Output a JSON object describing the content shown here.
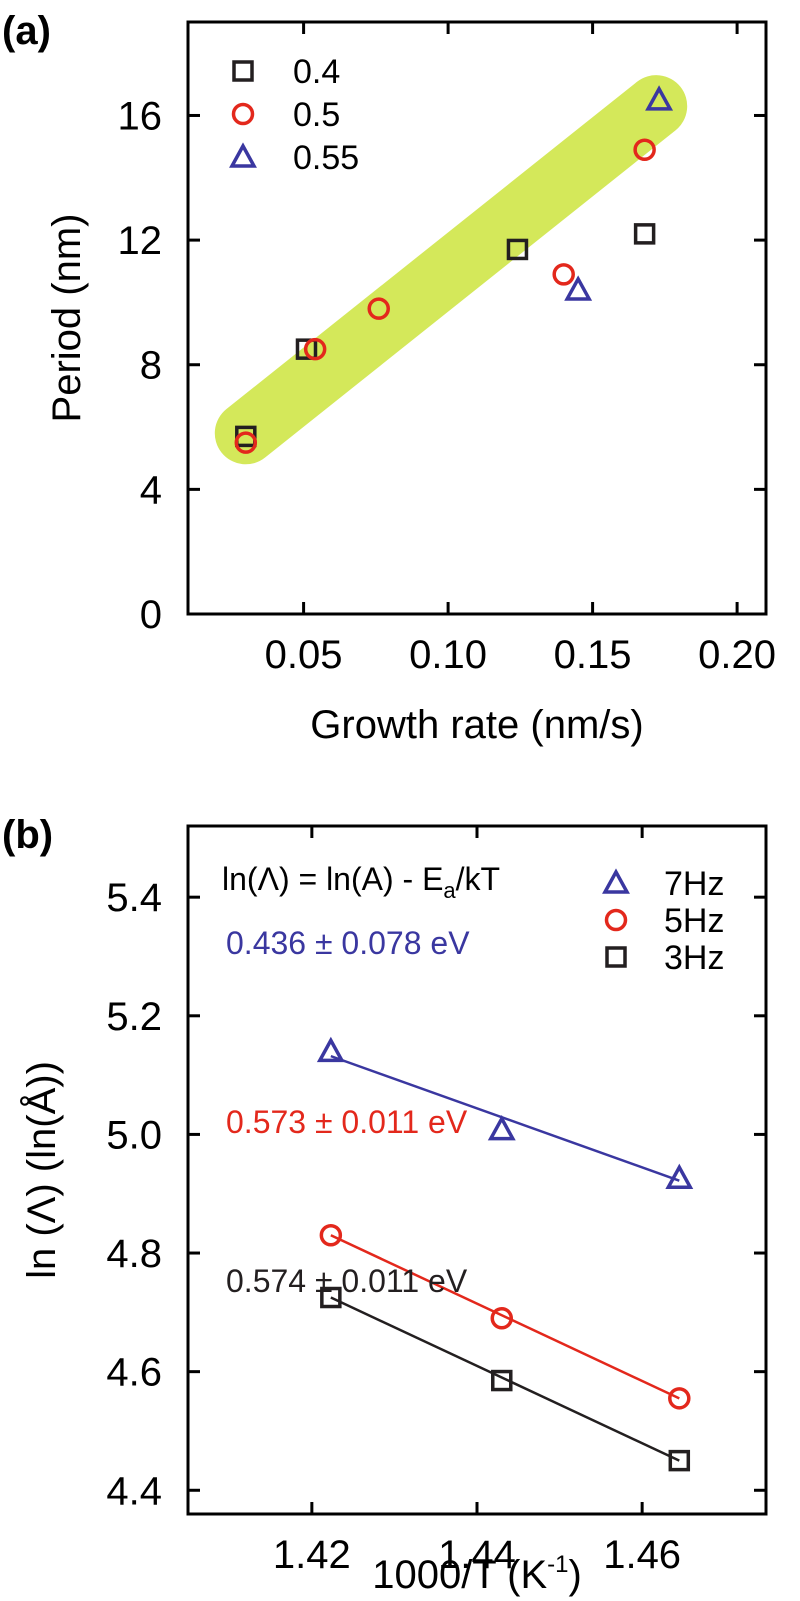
{
  "panels": {
    "a": {
      "label": "(a)"
    },
    "b": {
      "label": "(b)"
    }
  },
  "chart_data": [
    {
      "id": "a",
      "type": "scatter",
      "title": "",
      "xlabel": "Growth rate (nm/s)",
      "ylabel": "Period (nm)",
      "xlim": [
        0.01,
        0.21
      ],
      "ylim": [
        0,
        19
      ],
      "xticks": [
        0.05,
        0.1,
        0.15,
        0.2
      ],
      "xtick_labels": [
        "0.05",
        "0.10",
        "0.15",
        "0.20"
      ],
      "yticks": [
        0,
        4,
        8,
        12,
        16
      ],
      "ytick_labels": [
        "0",
        "4",
        "8",
        "12",
        "16"
      ],
      "legend_position": "top-left",
      "highlight_band": {
        "from": [
          0.03,
          5.8
        ],
        "to": [
          0.172,
          16.3
        ],
        "color": "#d4e85a"
      },
      "series": [
        {
          "name": "0.4",
          "marker": "square",
          "color": "#231f20",
          "x": [
            0.03,
            0.051,
            0.124,
            0.168
          ],
          "y": [
            5.7,
            8.5,
            11.7,
            12.2
          ]
        },
        {
          "name": "0.5",
          "marker": "circle",
          "color": "#e3281c",
          "x": [
            0.03,
            0.054,
            0.076,
            0.14,
            0.168
          ],
          "y": [
            5.5,
            8.5,
            9.8,
            10.9,
            14.9
          ]
        },
        {
          "name": "0.55",
          "marker": "triangle",
          "color": "#3a37a0",
          "x": [
            0.145,
            0.173
          ],
          "y": [
            10.4,
            16.5
          ]
        }
      ]
    },
    {
      "id": "b",
      "type": "line",
      "title": "",
      "xlabel": "1000/T (K",
      "xlabel_sup": "-1",
      "xlabel_end": ")",
      "ylabel": "ln (Λ) (ln(Å))",
      "xlim": [
        1.405,
        1.475
      ],
      "ylim": [
        4.36,
        5.52
      ],
      "xticks": [
        1.42,
        1.44,
        1.46
      ],
      "xtick_labels": [
        "1.42",
        "1.44",
        "1.46"
      ],
      "yticks": [
        4.4,
        4.6,
        4.8,
        5.0,
        5.2,
        5.4
      ],
      "ytick_labels": [
        "4.4",
        "4.6",
        "4.8",
        "5.0",
        "5.2",
        "5.4"
      ],
      "legend_position": "top-right",
      "equation": {
        "part1": "ln(Λ) = ln(A) - E",
        "sub": "a",
        "part2": "/kT"
      },
      "series": [
        {
          "name": "7Hz",
          "marker": "triangle",
          "color": "#3a37a0",
          "x": [
            1.4223,
            1.443,
            1.4645
          ],
          "y": [
            5.14,
            5.008,
            4.926
          ],
          "fit": {
            "x": [
              1.4223,
              1.4645
            ],
            "y": [
              5.132,
              4.922
            ]
          },
          "annotation": "0.436 ± 0.078 eV"
        },
        {
          "name": "5Hz",
          "marker": "circle",
          "color": "#e3281c",
          "x": [
            1.4223,
            1.443,
            1.4645
          ],
          "y": [
            4.83,
            4.69,
            4.555
          ],
          "fit": {
            "x": [
              1.4223,
              1.4645
            ],
            "y": [
              4.83,
              4.555
            ]
          },
          "annotation": "0.573 ± 0.011 eV"
        },
        {
          "name": "3Hz",
          "marker": "square",
          "color": "#231f20",
          "x": [
            1.4223,
            1.443,
            1.4645
          ],
          "y": [
            4.725,
            4.585,
            4.45
          ],
          "fit": {
            "x": [
              1.4223,
              1.4645
            ],
            "y": [
              4.725,
              4.45
            ]
          },
          "annotation": "0.574 ± 0.011 eV"
        }
      ]
    }
  ]
}
